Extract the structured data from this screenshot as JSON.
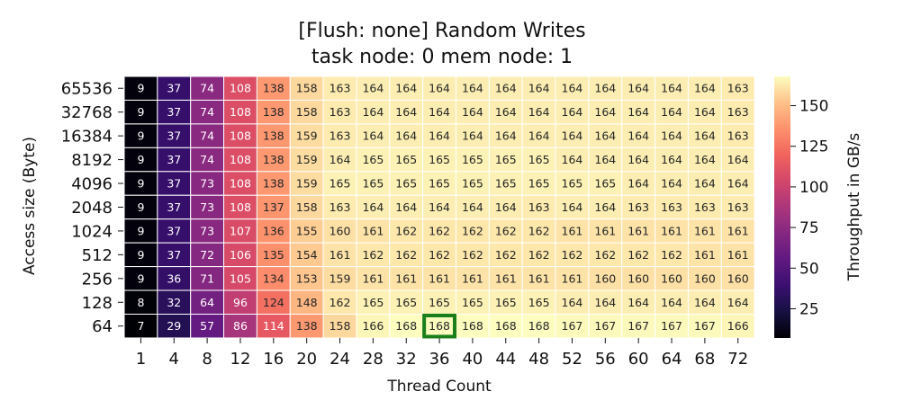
{
  "chart_data": {
    "type": "heatmap",
    "title": "[Flush: none] Random Writes",
    "subtitle": "task node: 0 mem node: 1",
    "xlabel": "Thread Count",
    "ylabel": "Access size (Byte)",
    "colorbar_label": "Throughput in GB/s",
    "colormap": "magma",
    "vmin": 7,
    "vmax": 168,
    "colorbar_ticks": [
      25,
      50,
      75,
      100,
      125,
      150
    ],
    "x": [
      "1",
      "4",
      "8",
      "12",
      "16",
      "20",
      "24",
      "28",
      "32",
      "36",
      "40",
      "44",
      "48",
      "52",
      "56",
      "60",
      "64",
      "68",
      "72"
    ],
    "y": [
      "65536",
      "32768",
      "16384",
      "8192",
      "4096",
      "2048",
      "1024",
      "512",
      "256",
      "128",
      "64"
    ],
    "values": [
      [
        9,
        37,
        74,
        108,
        138,
        158,
        163,
        164,
        164,
        164,
        164,
        164,
        164,
        164,
        164,
        164,
        164,
        164,
        163
      ],
      [
        9,
        37,
        74,
        108,
        138,
        158,
        163,
        164,
        164,
        164,
        164,
        164,
        164,
        164,
        164,
        164,
        164,
        164,
        163
      ],
      [
        9,
        37,
        74,
        108,
        138,
        159,
        163,
        164,
        164,
        164,
        164,
        164,
        164,
        164,
        164,
        164,
        164,
        164,
        163
      ],
      [
        9,
        37,
        74,
        108,
        138,
        159,
        164,
        165,
        165,
        165,
        165,
        165,
        165,
        164,
        164,
        164,
        164,
        164,
        164
      ],
      [
        9,
        37,
        73,
        108,
        138,
        159,
        165,
        165,
        165,
        165,
        165,
        165,
        165,
        165,
        165,
        164,
        164,
        164,
        164
      ],
      [
        9,
        37,
        73,
        108,
        137,
        158,
        163,
        164,
        164,
        164,
        164,
        164,
        163,
        164,
        164,
        163,
        163,
        163,
        163
      ],
      [
        9,
        37,
        73,
        107,
        136,
        155,
        160,
        161,
        162,
        162,
        162,
        162,
        162,
        161,
        161,
        161,
        161,
        161,
        161
      ],
      [
        9,
        37,
        72,
        106,
        135,
        154,
        161,
        162,
        162,
        162,
        162,
        162,
        162,
        162,
        162,
        162,
        162,
        161,
        161
      ],
      [
        9,
        36,
        71,
        105,
        134,
        153,
        159,
        161,
        161,
        161,
        161,
        161,
        161,
        161,
        160,
        160,
        160,
        160,
        160
      ],
      [
        8,
        32,
        64,
        96,
        124,
        148,
        162,
        165,
        165,
        165,
        165,
        165,
        165,
        164,
        164,
        164,
        164,
        164,
        164
      ],
      [
        7,
        29,
        57,
        86,
        114,
        138,
        158,
        166,
        168,
        168,
        168,
        168,
        168,
        167,
        167,
        167,
        167,
        167,
        166
      ]
    ],
    "highlight": {
      "x": "36",
      "y": "64",
      "color": "#1a7f1a"
    }
  }
}
